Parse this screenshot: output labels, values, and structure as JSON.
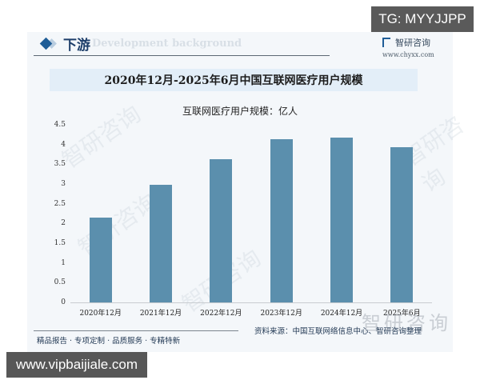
{
  "badges": {
    "top_right": "TG: MYYJJPP",
    "bottom_left": "www.vipbaijiale.com"
  },
  "header": {
    "section_title": "下游",
    "section_subtitle": "Development background",
    "brand_name": "智研咨询",
    "brand_url": "www.chyxx.com"
  },
  "footer": {
    "tagline": "精品报告 · 专项定制 · 品质服务 · 专精特新",
    "source": "资料来源：中国互联网络信息中心、智研咨询整理",
    "watermark": "智研咨询"
  },
  "colors": {
    "bar": "#5b8fad",
    "title_bg": "#e3eef8",
    "accent": "#1f5d97"
  },
  "chart_data": {
    "type": "bar",
    "title": "2020年12月-2025年6月中国互联网医疗用户规模",
    "legend": [
      "互联网医疗用户规模：亿人"
    ],
    "xlabel": "",
    "ylabel": "",
    "categories": [
      "2020年12月",
      "2021年12月",
      "2022年12月",
      "2023年12月",
      "2024年12月",
      "2025年6月"
    ],
    "series": [
      {
        "name": "互联网医疗用户规模：亿人",
        "values": [
          2.15,
          2.98,
          3.63,
          4.14,
          4.18,
          3.93
        ]
      }
    ],
    "yticks": [
      "0",
      "0.5",
      "1",
      "1.5",
      "2",
      "2.5",
      "3",
      "3.5",
      "4",
      "4.5"
    ],
    "ylim": [
      0,
      4.5
    ],
    "grid": false,
    "legend_position": "top"
  }
}
